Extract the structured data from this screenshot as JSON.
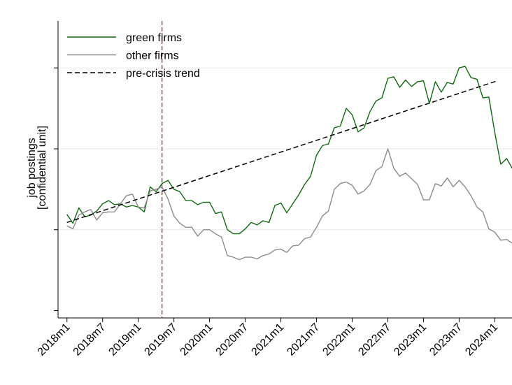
{
  "chart_data": {
    "type": "line",
    "y_label": [
      "job postings",
      "[confidential unit]"
    ],
    "categories": [
      "2018m1",
      null,
      null,
      null,
      null,
      null,
      "2018m7",
      null,
      null,
      null,
      null,
      null,
      "2019m1",
      null,
      null,
      null,
      null,
      null,
      "2019m7",
      null,
      null,
      null,
      null,
      null,
      "2020m1",
      null,
      null,
      null,
      null,
      null,
      "2020m7",
      null,
      null,
      null,
      null,
      null,
      "2021m1",
      null,
      null,
      null,
      null,
      null,
      "2021m7",
      null,
      null,
      null,
      null,
      null,
      "2022m1",
      null,
      null,
      null,
      null,
      null,
      "2022m7",
      null,
      null,
      null,
      null,
      null,
      "2023m1",
      null,
      null,
      null,
      null,
      null,
      "2023m7",
      null,
      null,
      null,
      null,
      null,
      "2024m1",
      null,
      null,
      null
    ],
    "xlim": [
      -1.5,
      74.9
    ],
    "ylim": [
      -0.09,
      3.58
    ],
    "yticks": [
      0,
      1,
      2,
      3
    ],
    "show_ytick_labels": false,
    "grid": true,
    "legend": "upper left",
    "crisis_line": 16,
    "crisis_color": "#9b2d30",
    "series": [
      {
        "name": "green firms",
        "color": "#0f6b0f",
        "style": "solid",
        "values": [
          1.19,
          1.08,
          1.27,
          1.16,
          1.18,
          1.23,
          1.32,
          1.36,
          1.31,
          1.32,
          1.28,
          1.3,
          1.28,
          1.22,
          1.53,
          1.47,
          1.57,
          1.61,
          1.5,
          1.47,
          1.36,
          1.36,
          1.31,
          1.34,
          1.34,
          1.2,
          1.22,
          1.0,
          0.95,
          0.95,
          1.01,
          1.09,
          1.06,
          1.11,
          1.09,
          1.3,
          1.33,
          1.21,
          1.32,
          1.43,
          1.56,
          1.66,
          1.92,
          2.04,
          2.06,
          2.26,
          2.28,
          2.5,
          2.42,
          2.21,
          2.26,
          2.46,
          2.59,
          2.63,
          2.87,
          2.89,
          2.76,
          2.85,
          2.77,
          2.83,
          2.84,
          2.56,
          2.83,
          2.7,
          2.82,
          2.8,
          3.0,
          3.02,
          2.88,
          2.86,
          2.63,
          2.64,
          2.2,
          1.81,
          1.88,
          1.75
        ]
      },
      {
        "name": "other firms",
        "color": "#8c8c8c",
        "style": "solid",
        "values": [
          1.05,
          1.01,
          1.18,
          1.22,
          1.25,
          1.12,
          1.21,
          1.22,
          1.22,
          1.32,
          1.42,
          1.44,
          1.28,
          1.27,
          1.48,
          1.5,
          1.53,
          1.38,
          1.17,
          1.08,
          1.03,
          1.03,
          0.92,
          1.0,
          1.0,
          0.95,
          0.91,
          0.68,
          0.66,
          0.63,
          0.66,
          0.66,
          0.64,
          0.68,
          0.7,
          0.75,
          0.76,
          0.72,
          0.8,
          0.81,
          0.89,
          0.91,
          1.03,
          1.17,
          1.23,
          1.5,
          1.57,
          1.59,
          1.55,
          1.44,
          1.48,
          1.56,
          1.73,
          1.78,
          2.0,
          1.76,
          1.66,
          1.7,
          1.63,
          1.56,
          1.37,
          1.37,
          1.57,
          1.54,
          1.64,
          1.53,
          1.61,
          1.53,
          1.42,
          1.28,
          1.22,
          1.01,
          0.97,
          0.87,
          0.88,
          0.83
        ]
      },
      {
        "name": "pre-crisis trend",
        "color": "#000000",
        "style": "dashed",
        "x": [
          0,
          72.4
        ],
        "values": [
          1.09,
          2.84
        ]
      }
    ]
  }
}
